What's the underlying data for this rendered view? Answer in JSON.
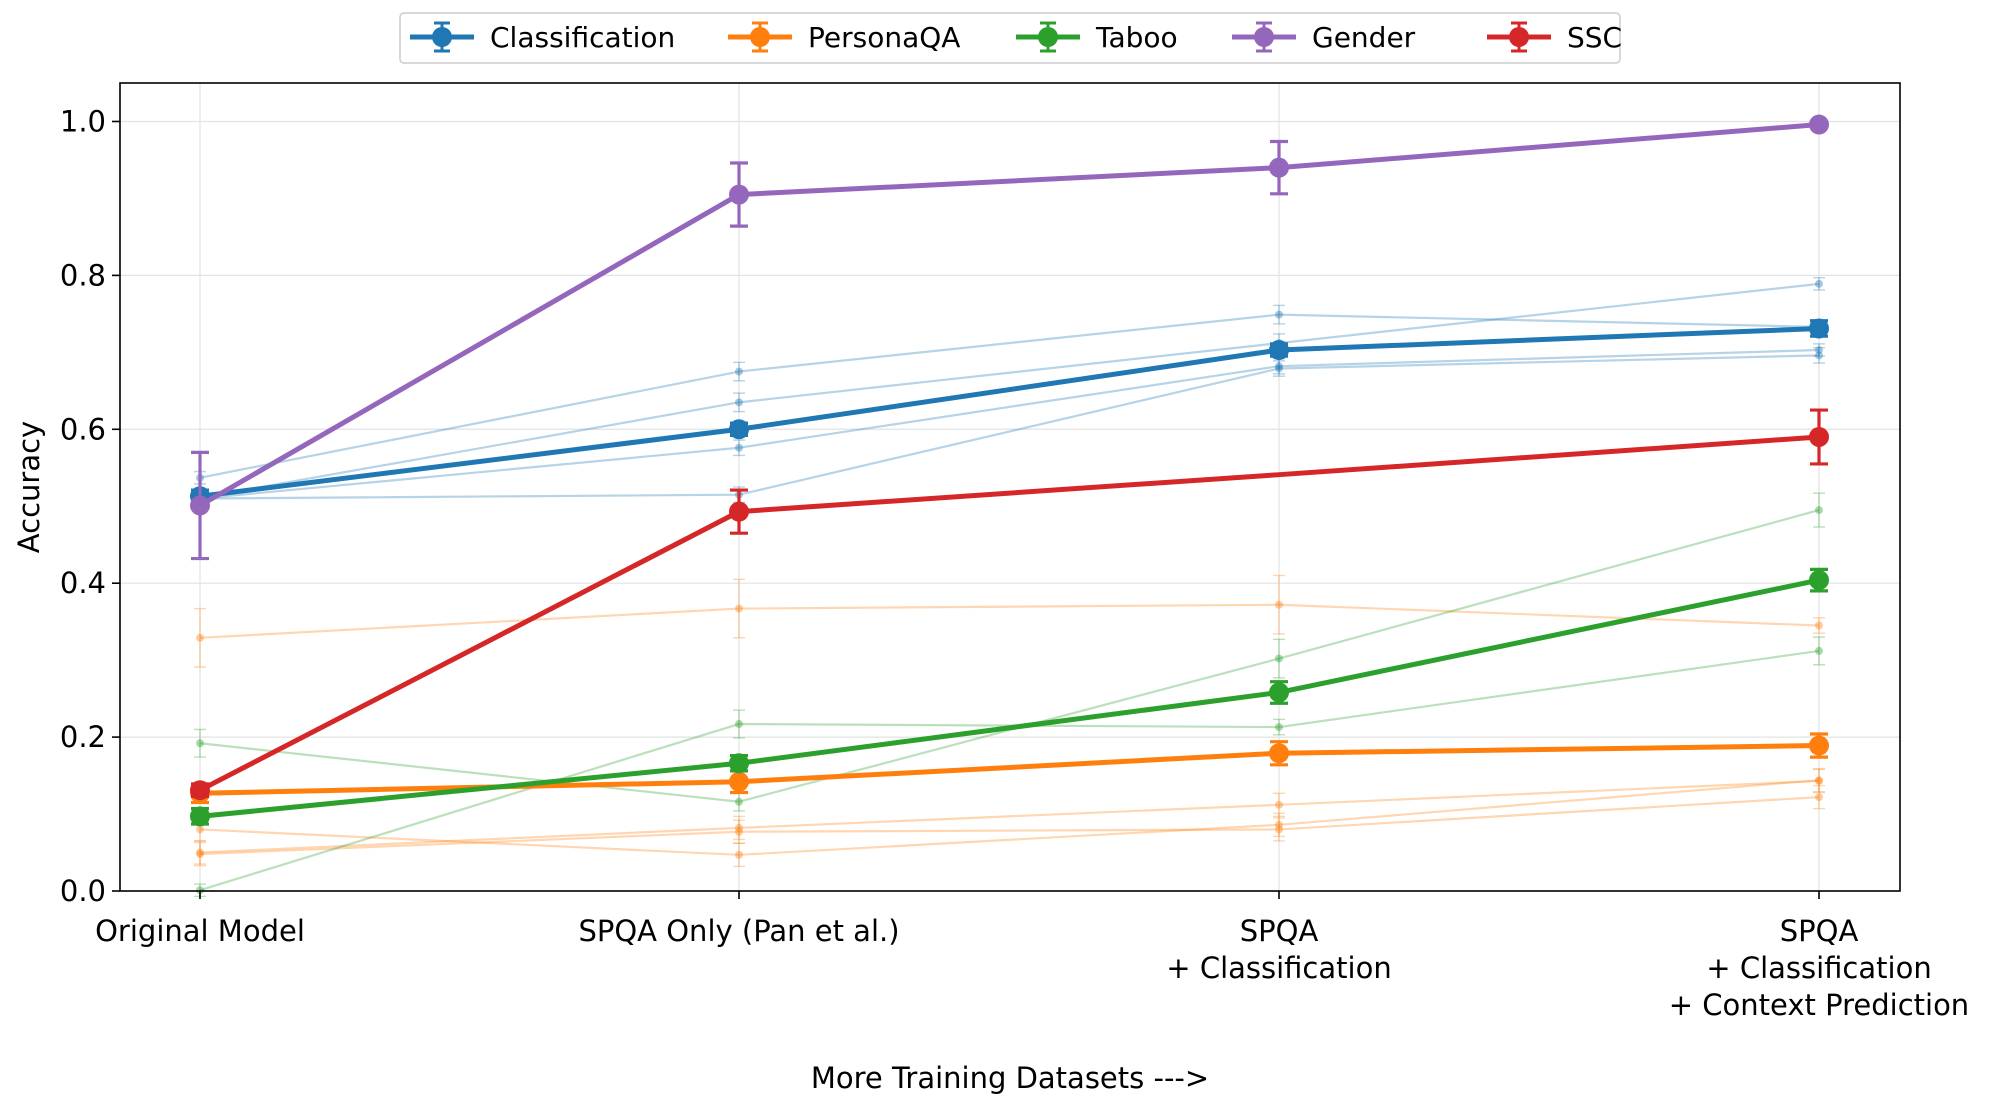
{
  "chart_data": {
    "type": "line",
    "title": "",
    "xlabel": "More Training Datasets --->",
    "ylabel": "Accuracy",
    "ylim": [
      0.0,
      1.05
    ],
    "grid": true,
    "legend_position": "top-center",
    "x_tick_labels": [
      [
        "Original Model"
      ],
      [
        "SPQA Only (Pan et al.)"
      ],
      [
        "SPQA",
        "+ Classification"
      ],
      [
        "SPQA",
        "+ Classification",
        "+ Context Prediction"
      ]
    ],
    "y_ticks": [
      0.0,
      0.2,
      0.4,
      0.6,
      0.8,
      1.0
    ],
    "y_tick_labels": [
      "0.0",
      "0.2",
      "0.4",
      "0.6",
      "0.8",
      "1.0"
    ],
    "series": [
      {
        "name": "Classification",
        "color": "#1f77b4",
        "values": [
          0.513,
          0.6,
          0.703,
          0.731
        ],
        "errors": [
          0.008,
          0.008,
          0.008,
          0.01
        ],
        "sub_series": [
          {
            "values": [
              0.537,
              0.675,
              0.749,
              0.733
            ],
            "errors": [
              0.008,
              0.012,
              0.012,
              0.008
            ]
          },
          {
            "values": [
              0.511,
              0.635,
              0.712,
              0.789
            ],
            "errors": [
              0.008,
              0.012,
              0.012,
              0.008
            ]
          },
          {
            "values": [
              0.51,
              0.576,
              0.682,
              0.703
            ],
            "errors": [
              0.008,
              0.01,
              0.01,
              0.008
            ]
          },
          {
            "values": [
              0.51,
              0.515,
              0.679,
              0.696
            ],
            "errors": [
              0.008,
              0.01,
              0.01,
              0.01
            ]
          }
        ]
      },
      {
        "name": "PersonaQA",
        "color": "#ff7f0e",
        "values": [
          0.127,
          0.142,
          0.179,
          0.189
        ],
        "errors": [
          0.012,
          0.014,
          0.015,
          0.015
        ],
        "sub_series": [
          {
            "values": [
              0.329,
              0.367,
              0.372,
              0.345
            ],
            "errors": [
              0.038,
              0.038,
              0.038,
              0.01
            ]
          },
          {
            "values": [
              0.08,
              0.047,
              0.086,
              0.144
            ],
            "errors": [
              0.015,
              0.015,
              0.015,
              0.015
            ]
          },
          {
            "values": [
              0.05,
              0.082,
              0.112,
              0.143
            ],
            "errors": [
              0.015,
              0.015,
              0.015,
              0.015
            ]
          },
          {
            "values": [
              0.048,
              0.077,
              0.08,
              0.122
            ],
            "errors": [
              0.015,
              0.015,
              0.015,
              0.015
            ]
          }
        ]
      },
      {
        "name": "Taboo",
        "color": "#2ca02c",
        "values": [
          0.097,
          0.166,
          0.258,
          0.404
        ],
        "errors": [
          0.01,
          0.01,
          0.014,
          0.014
        ],
        "sub_series": [
          {
            "values": [
              0.192,
              0.116,
              0.302,
              0.495
            ],
            "errors": [
              0.018,
              0.012,
              0.025,
              0.022
            ]
          },
          {
            "values": [
              0.001,
              0.217,
              0.213,
              0.312
            ],
            "errors": [
              0.008,
              0.018,
              0.01,
              0.018
            ]
          }
        ]
      },
      {
        "name": "Gender",
        "color": "#9467bd",
        "values": [
          0.501,
          0.905,
          0.94,
          0.996
        ],
        "errors": [
          0.069,
          0.041,
          0.034,
          0.004
        ]
      },
      {
        "name": "SSC",
        "color": "#d62728",
        "values": [
          0.131,
          0.493,
          0.541,
          0.59
        ],
        "errors": [
          0.008,
          0.028,
          0.0,
          0.035
        ],
        "markers": [
          true,
          true,
          false,
          true
        ]
      }
    ]
  }
}
